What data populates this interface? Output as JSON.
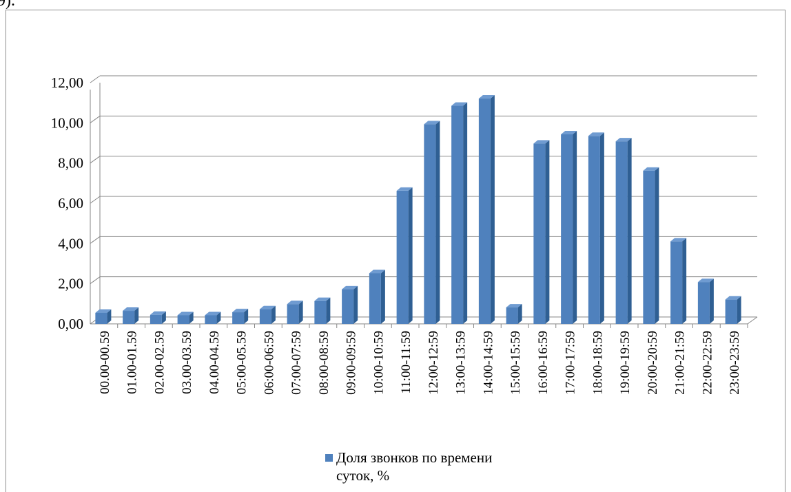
{
  "page": {
    "top_fragment": "9)."
  },
  "chart_data": {
    "type": "bar",
    "title": "",
    "xlabel": "",
    "ylabel": "",
    "ylim": [
      0,
      12
    ],
    "y_ticks": [
      "0,00",
      "2,00",
      "4,00",
      "6,00",
      "8,00",
      "10,00",
      "12,00"
    ],
    "grid": true,
    "three_d": true,
    "legend_position": "bottom",
    "bar_color": "#4f81bd",
    "categories": [
      "00.00-00.59",
      "01.00-01.59",
      "02.00-02.59",
      "03.00-03.59",
      "04.00-04.59",
      "05:00-05.59",
      "06:00-06:59",
      "07:00-07:59",
      "08:00-08:59",
      "09:00-09:59",
      "10:00-10:59",
      "11:00-11:59",
      "12:00-12:59",
      "13:00-13:59",
      "14:00-14:59",
      "15:00-15:59",
      "16:00-16:59",
      "17:00-17:59",
      "18:00-18:59",
      "19:00-19:59",
      "20:00-20:59",
      "21:00-21:59",
      "22:00-22:59",
      "23:00-23:59"
    ],
    "series": [
      {
        "name": "Доля звонков по времени суток, %",
        "name_lines": [
          "Доля звонков по времени",
          "суток, %"
        ],
        "values": [
          0.55,
          0.65,
          0.45,
          0.43,
          0.43,
          0.58,
          0.73,
          0.98,
          1.14,
          1.72,
          2.52,
          6.62,
          9.93,
          10.85,
          11.21,
          0.82,
          8.97,
          9.43,
          9.35,
          9.08,
          7.62,
          4.1,
          2.08,
          1.21
        ]
      }
    ]
  }
}
